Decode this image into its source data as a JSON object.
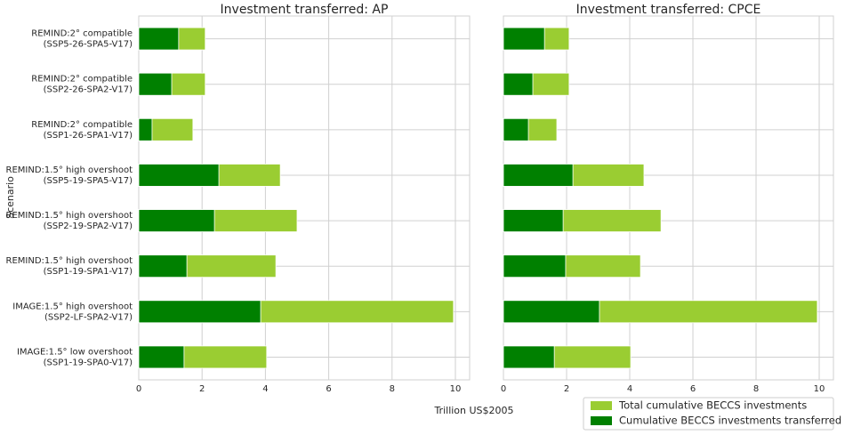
{
  "chart_data": [
    {
      "type": "barh",
      "title": "Investment transferred: AP",
      "ylabel": "Scenario",
      "xlabel": "Trillion US$2005",
      "categories": [
        "REMIND:2° compatible\n(SSP5-26-SPA5-V17)",
        "REMIND:2° compatible\n(SSP2-26-SPA2-V17)",
        "REMIND:2° compatible\n(SSP1-26-SPA1-V17)",
        "REMIND:1.5° high overshoot\n(SSP5-19-SPA5-V17)",
        "REMIND:1.5° high overshoot\n(SSP2-19-SPA2-V17)",
        "REMIND:1.5° high overshoot\n(SSP1-19-SPA1-V17)",
        "IMAGE:1.5° high overshoot\n(SSP2-LF-SPA2-V17)",
        "IMAGE:1.5° low overshoot\n(SSP1-19-SPA0-V17)"
      ],
      "series": [
        {
          "name": "Total cumulative BECCS investments",
          "color": "#9acd32",
          "values": [
            2.1,
            2.1,
            1.71,
            4.47,
            5.0,
            4.33,
            9.94,
            4.04
          ]
        },
        {
          "name": "Cumulative BECCS investments transferred",
          "color": "#008000",
          "values": [
            1.26,
            1.04,
            0.42,
            2.53,
            2.39,
            1.52,
            3.85,
            1.43
          ]
        }
      ],
      "xlim": [
        0,
        10.45
      ],
      "xticks": [
        0,
        2,
        4,
        6,
        8,
        10
      ],
      "grid": true
    },
    {
      "type": "barh",
      "title": "Investment transferred: CPCE",
      "series": [
        {
          "color": "#9acd32",
          "values": [
            2.08,
            2.08,
            1.69,
            4.45,
            4.99,
            4.34,
            9.94,
            4.03
          ]
        },
        {
          "color": "#008000",
          "values": [
            1.3,
            0.93,
            0.79,
            2.2,
            1.89,
            1.97,
            3.04,
            1.61
          ]
        }
      ],
      "xlim": [
        0,
        10.45
      ],
      "xticks": [
        0,
        2,
        4,
        6,
        8,
        10
      ],
      "grid": true
    }
  ]
}
